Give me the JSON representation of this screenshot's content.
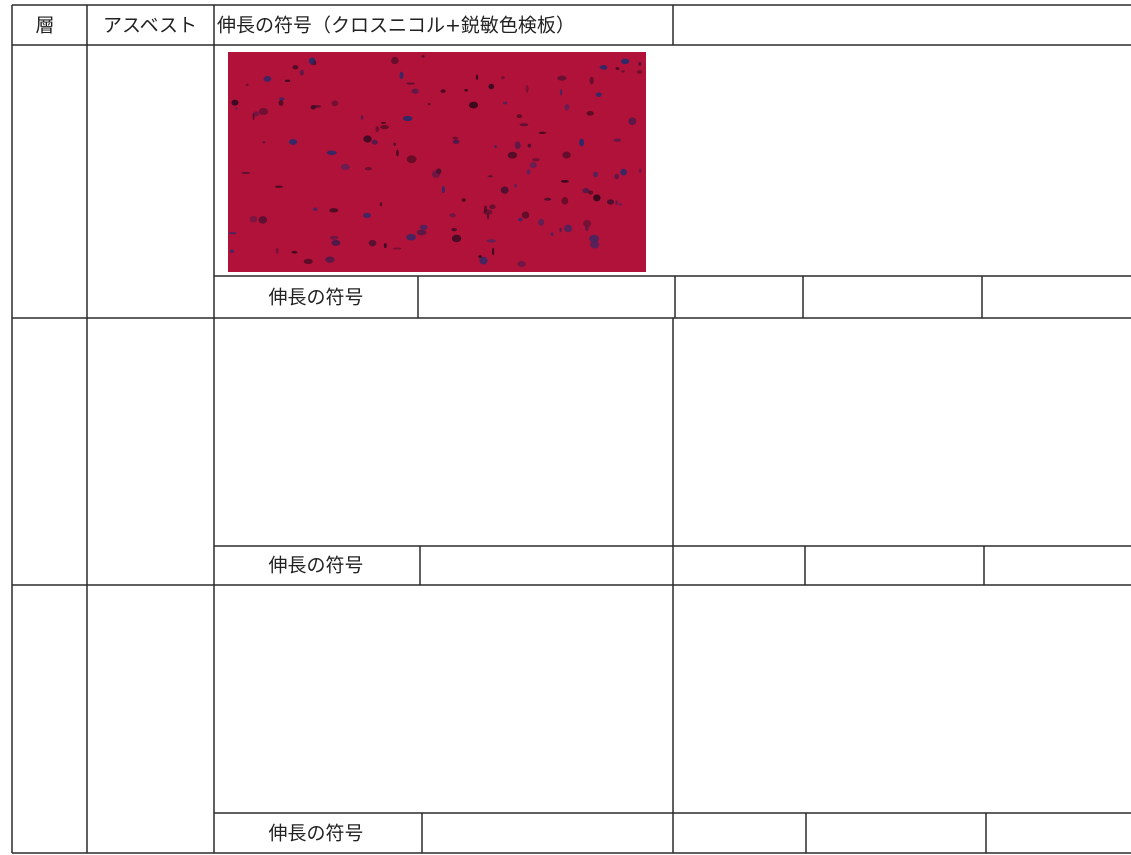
{
  "header": {
    "columns": [
      "層",
      "アスベスト",
      "伸長の符号（クロスニコル+鋭敏色検板）"
    ]
  },
  "rows": [
    {
      "sign_label": "伸長の符号"
    },
    {
      "sign_label": "伸長の符号"
    },
    {
      "sign_label": "伸長の符号"
    }
  ]
}
